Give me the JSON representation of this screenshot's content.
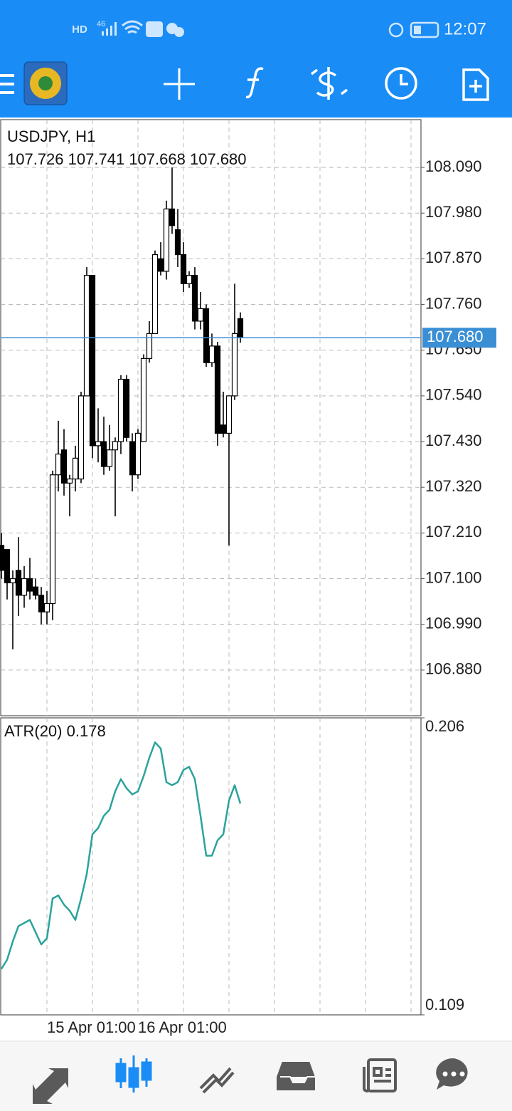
{
  "status_bar": {
    "left": [
      "HD",
      "46"
    ],
    "time": "12:07"
  },
  "chart_header": {
    "symbol": "USDJPY, H1",
    "last_bar_labels": [
      "107.726",
      "107.741",
      "107.668",
      "107.680"
    ]
  },
  "chart_data": [
    {
      "type": "candlestick",
      "name": "USDJPY, H1",
      "categories": [
        null,
        null,
        null,
        null,
        null,
        null,
        null,
        null,
        "15 Apr 01:00",
        null,
        null,
        null,
        null,
        null,
        null,
        null,
        null,
        null,
        null,
        null,
        null,
        null,
        null,
        null,
        "16 Apr 01:00",
        null,
        null,
        null,
        null,
        null,
        null,
        null,
        null,
        null,
        null,
        null,
        null,
        null,
        null,
        null,
        null,
        null,
        null
      ],
      "open": [
        107.18,
        107.17,
        107.09,
        107.12,
        107.06,
        107.1,
        107.08,
        107.06,
        107.02,
        107.04,
        107.35,
        107.41,
        107.33,
        107.34,
        107.34,
        107.54,
        107.83,
        107.42,
        107.43,
        107.37,
        107.41,
        107.43,
        107.58,
        107.43,
        107.35,
        107.43,
        107.63,
        107.69,
        107.87,
        107.84,
        107.99,
        107.94,
        107.88,
        107.81,
        107.83,
        107.72,
        107.75,
        107.62,
        107.66,
        107.47,
        107.45,
        107.54,
        107.726
      ],
      "high": [
        107.21,
        107.17,
        107.12,
        107.2,
        107.13,
        107.15,
        107.1,
        107.08,
        107.07,
        107.36,
        107.48,
        107.46,
        107.35,
        107.42,
        107.55,
        107.85,
        107.83,
        107.51,
        107.49,
        107.47,
        107.44,
        107.59,
        107.59,
        107.45,
        107.46,
        107.64,
        107.72,
        107.89,
        107.91,
        108.01,
        108.09,
        107.99,
        107.91,
        107.84,
        107.85,
        107.79,
        107.76,
        107.69,
        107.67,
        107.55,
        107.54,
        107.81,
        107.741
      ],
      "low": [
        107.1,
        107.05,
        106.93,
        107.01,
        107.03,
        107.05,
        107.05,
        106.99,
        106.99,
        107.0,
        107.31,
        107.3,
        107.25,
        107.31,
        107.33,
        107.54,
        107.39,
        107.38,
        107.35,
        107.36,
        107.25,
        107.4,
        107.43,
        107.31,
        107.34,
        107.43,
        107.62,
        107.69,
        107.83,
        107.82,
        107.93,
        107.85,
        107.79,
        107.8,
        107.7,
        107.7,
        107.61,
        107.61,
        107.42,
        107.44,
        107.18,
        107.53,
        107.668
      ],
      "close": [
        107.12,
        107.09,
        107.1,
        107.06,
        107.1,
        107.07,
        107.06,
        107.02,
        107.04,
        107.35,
        107.4,
        107.33,
        107.34,
        107.39,
        107.54,
        107.83,
        107.42,
        107.43,
        107.37,
        107.41,
        107.43,
        107.58,
        107.44,
        107.35,
        107.45,
        107.63,
        107.69,
        107.88,
        107.84,
        107.99,
        107.95,
        107.88,
        107.81,
        107.83,
        107.72,
        107.75,
        107.62,
        107.66,
        107.45,
        107.45,
        107.54,
        107.69,
        107.68
      ],
      "color": "#000000",
      "current_price": {
        "value": 107.68,
        "label": "107.680"
      },
      "current_price_color": "#3a8fd4",
      "ylim": [
        106.77,
        108.205
      ],
      "yticks": [
        {
          "value": 108.09,
          "label": "108.090"
        },
        {
          "value": 107.98,
          "label": "107.980"
        },
        {
          "value": 107.87,
          "label": "107.870"
        },
        {
          "value": 107.76,
          "label": "107.760"
        },
        {
          "value": 107.65,
          "label": "107.650"
        },
        {
          "value": 107.54,
          "label": "107.540"
        },
        {
          "value": 107.43,
          "label": "107.430"
        },
        {
          "value": 107.32,
          "label": "107.320"
        },
        {
          "value": 107.21,
          "label": "107.210"
        },
        {
          "value": 107.1,
          "label": "107.100"
        },
        {
          "value": 106.99,
          "label": "106.990"
        },
        {
          "value": 106.88,
          "label": "106.880"
        }
      ],
      "grid": true
    },
    {
      "type": "line",
      "series": [
        {
          "name": "ATR(20)",
          "color": "#2aa39b",
          "values": [
            0.124,
            0.127,
            0.133,
            0.138,
            0.139,
            0.14,
            0.136,
            0.132,
            0.134,
            0.147,
            0.148,
            0.145,
            0.143,
            0.14,
            0.147,
            0.155,
            0.168,
            0.17,
            0.174,
            0.176,
            0.182,
            0.186,
            0.183,
            0.181,
            0.182,
            0.187,
            0.193,
            0.198,
            0.196,
            0.185,
            0.184,
            0.185,
            0.189,
            0.19,
            0.186,
            0.174,
            0.161,
            0.161,
            0.166,
            0.168,
            0.179,
            0.184,
            0.178
          ]
        }
      ],
      "ylim": [
        0.109,
        0.206
      ],
      "yticks": [
        0.109,
        0.206
      ],
      "grid": true
    }
  ]
}
